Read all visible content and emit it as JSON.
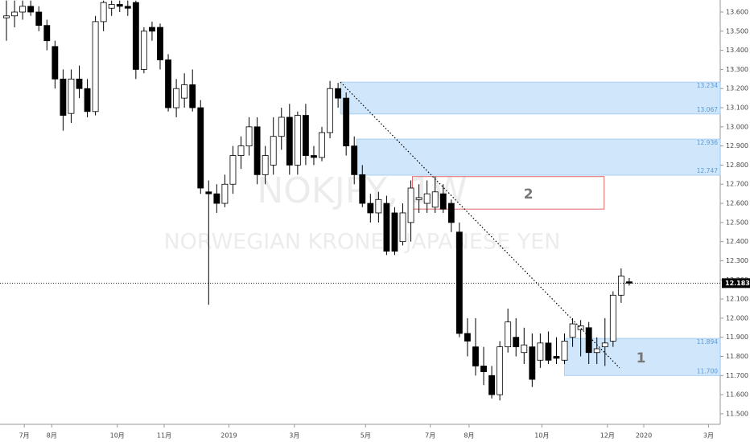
{
  "chart_data": {
    "type": "candlestick",
    "title": "NOKJPY, 1W",
    "subtitle": "NORWEGIAN KRONE / JAPANESE YEN",
    "open": [
      13.57,
      13.58,
      13.6,
      13.63,
      13.6,
      13.53,
      13.42,
      13.25,
      13.07,
      13.25,
      13.2,
      13.08,
      13.55,
      13.62,
      13.64,
      13.63,
      13.65,
      13.3,
      13.52,
      13.52,
      13.35,
      13.1,
      13.15,
      13.22,
      13.1,
      12.66,
      12.65,
      12.6,
      12.7,
      12.85,
      12.9,
      13.0,
      12.75,
      12.8,
      12.95,
      13.05,
      12.8,
      13.06,
      12.85,
      12.84,
      12.97,
      13.2,
      13.15,
      12.9,
      12.75,
      12.6,
      12.55,
      12.6,
      12.55,
      12.4,
      12.5,
      12.62,
      12.6,
      12.58,
      12.65,
      12.6,
      12.45,
      11.92,
      11.85,
      11.75,
      11.7,
      11.6,
      11.85,
      11.9,
      11.82,
      11.85,
      11.78,
      11.87,
      11.8,
      11.78,
      11.9,
      11.94,
      11.95,
      11.82,
      11.85,
      11.88,
      12.12,
      12.19
    ],
    "high": [
      13.66,
      13.66,
      13.66,
      13.66,
      13.63,
      13.56,
      13.45,
      13.3,
      13.3,
      13.32,
      13.25,
      13.58,
      13.66,
      13.66,
      13.66,
      13.66,
      13.66,
      13.52,
      13.55,
      13.54,
      13.38,
      13.25,
      13.28,
      13.3,
      13.14,
      12.72,
      12.7,
      12.75,
      12.9,
      12.95,
      13.05,
      13.05,
      12.9,
      13.05,
      13.1,
      13.12,
      13.08,
      13.12,
      12.9,
      13.0,
      13.24,
      13.23,
      13.18,
      12.95,
      12.8,
      12.65,
      12.66,
      12.64,
      12.58,
      12.6,
      12.72,
      12.7,
      12.72,
      12.74,
      12.7,
      12.62,
      12.5,
      12.0,
      12.0,
      11.85,
      11.75,
      11.88,
      12.05,
      12.0,
      11.95,
      11.92,
      11.92,
      11.93,
      11.9,
      11.92,
      12.0,
      11.99,
      11.98,
      11.9,
      12.0,
      12.14,
      12.26,
      12.21
    ],
    "low": [
      13.45,
      13.52,
      13.56,
      13.58,
      13.5,
      13.4,
      13.2,
      12.98,
      13.02,
      13.15,
      13.05,
      13.06,
      13.5,
      13.58,
      13.6,
      13.58,
      13.25,
      13.28,
      13.45,
      13.3,
      13.08,
      13.05,
      13.1,
      13.08,
      12.65,
      12.07,
      12.55,
      12.58,
      12.65,
      12.78,
      12.85,
      12.7,
      12.7,
      12.75,
      12.88,
      12.75,
      12.75,
      12.8,
      12.8,
      12.82,
      12.94,
      13.1,
      12.85,
      12.7,
      12.58,
      12.5,
      12.5,
      12.33,
      12.33,
      12.38,
      12.4,
      12.55,
      12.55,
      12.55,
      12.55,
      12.45,
      11.9,
      11.8,
      11.7,
      11.65,
      11.58,
      11.57,
      11.82,
      11.8,
      11.76,
      11.64,
      11.74,
      11.76,
      11.76,
      11.76,
      11.85,
      11.8,
      11.76,
      11.76,
      11.75,
      11.85,
      12.08,
      12.17
    ],
    "close": [
      13.58,
      13.6,
      13.63,
      13.6,
      13.53,
      13.45,
      13.25,
      13.06,
      13.25,
      13.2,
      13.08,
      13.55,
      13.65,
      13.64,
      13.63,
      13.62,
      13.3,
      13.5,
      13.5,
      13.35,
      13.1,
      13.2,
      13.22,
      13.1,
      12.68,
      12.65,
      12.6,
      12.7,
      12.85,
      12.9,
      13.0,
      12.75,
      12.85,
      12.95,
      13.05,
      12.8,
      13.06,
      12.85,
      12.84,
      12.97,
      13.2,
      13.15,
      12.9,
      12.75,
      12.6,
      12.55,
      12.62,
      12.35,
      12.35,
      12.55,
      12.68,
      12.63,
      12.65,
      12.66,
      12.57,
      12.5,
      11.92,
      11.88,
      11.75,
      11.72,
      11.6,
      11.85,
      11.98,
      11.85,
      11.86,
      11.68,
      11.87,
      11.78,
      11.79,
      11.88,
      11.97,
      11.96,
      11.82,
      11.84,
      11.87,
      12.12,
      12.22,
      12.183
    ],
    "up_color": "#ffffff",
    "down_color": "#000000",
    "xlim": [
      -0.8,
      88.25
    ],
    "xticks": [
      {
        "value": 2.2,
        "label": "7月"
      },
      {
        "value": 5.6,
        "label": "8月"
      },
      {
        "value": 13.7,
        "label": "10月"
      },
      {
        "value": 19.5,
        "label": "11月"
      },
      {
        "value": 27.5,
        "label": "2019"
      },
      {
        "value": 35.6,
        "label": "3月"
      },
      {
        "value": 44.4,
        "label": "5月"
      },
      {
        "value": 52.4,
        "label": "7月"
      },
      {
        "value": 57.2,
        "label": "8月"
      },
      {
        "value": 66.2,
        "label": "10月"
      },
      {
        "value": 74.3,
        "label": "12月"
      },
      {
        "value": 78.8,
        "label": "2020"
      },
      {
        "value": 86.8,
        "label": "3月"
      }
    ],
    "ylim": [
      11.445,
      13.663
    ],
    "yticks": [
      {
        "value": 11.5,
        "label": "11.500"
      },
      {
        "value": 11.6,
        "label": "11.600"
      },
      {
        "value": 11.7,
        "label": "11.700"
      },
      {
        "value": 11.8,
        "label": "11.800"
      },
      {
        "value": 11.9,
        "label": "11.900"
      },
      {
        "value": 12.0,
        "label": "12.000"
      },
      {
        "value": 12.1,
        "label": "12.100"
      },
      {
        "value": 12.2,
        "label": "12.200"
      },
      {
        "value": 12.3,
        "label": "12.300"
      },
      {
        "value": 12.4,
        "label": "12.400"
      },
      {
        "value": 12.5,
        "label": "12.500"
      },
      {
        "value": 12.6,
        "label": "12.600"
      },
      {
        "value": 12.7,
        "label": "12.700"
      },
      {
        "value": 12.8,
        "label": "12.800"
      },
      {
        "value": 12.9,
        "label": "12.900"
      },
      {
        "value": 13.0,
        "label": "13.000"
      },
      {
        "value": 13.1,
        "label": "13.100"
      },
      {
        "value": 13.2,
        "label": "13.200"
      },
      {
        "value": 13.3,
        "label": "13.300"
      },
      {
        "value": 13.4,
        "label": "13.400"
      },
      {
        "value": 13.5,
        "label": "13.500"
      },
      {
        "value": 13.6,
        "label": "13.600"
      }
    ],
    "zones": [
      {
        "start": 41.3,
        "low": {
          "value": 13.067,
          "label": "13.067"
        },
        "high": {
          "value": 13.234,
          "label": "13.234"
        }
      },
      {
        "start": 43.3,
        "low": {
          "value": 12.747,
          "label": "12.747"
        },
        "high": {
          "value": 12.936,
          "label": "12.936"
        }
      },
      {
        "start": 69.0,
        "low": {
          "value": 11.7,
          "label": "11.700"
        },
        "high": {
          "value": 11.894,
          "label": "11.894"
        },
        "label": "1"
      }
    ],
    "box": {
      "start": 50.2,
      "end": 73.9,
      "low": 12.57,
      "high": 12.74,
      "label": "2",
      "color": "#e06666"
    },
    "zone_color": "#cfe6fb",
    "trendline": {
      "x": [
        41.3,
        75.8
      ],
      "y": [
        13.234,
        11.74
      ]
    },
    "last_price": {
      "value": 12.183,
      "label": "12.183"
    }
  }
}
